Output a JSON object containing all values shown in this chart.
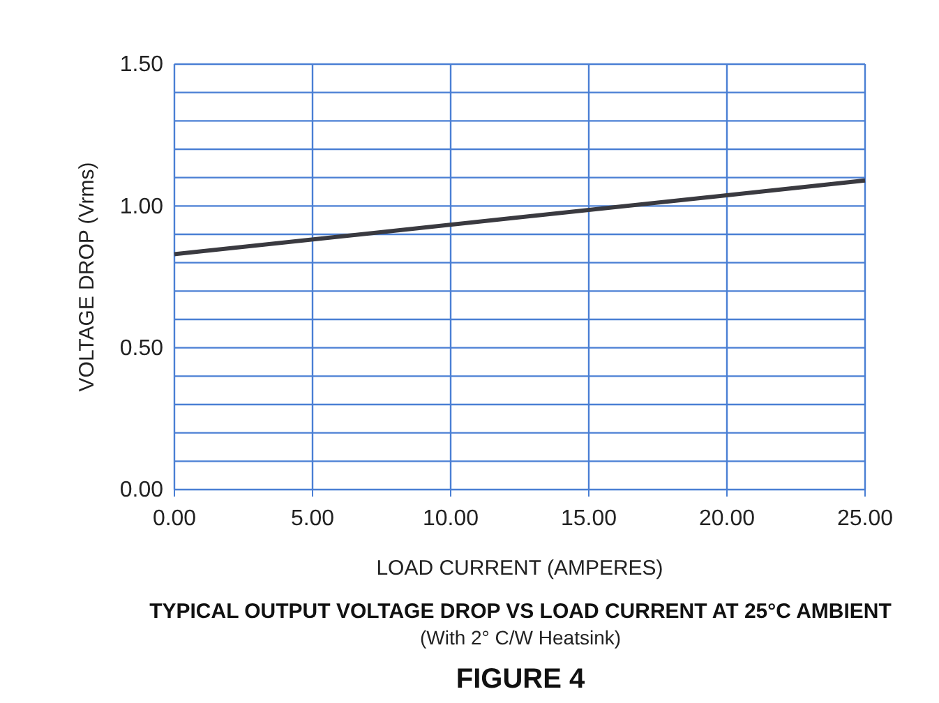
{
  "chart_data": {
    "type": "line",
    "title": "TYPICAL OUTPUT VOLTAGE DROP VS LOAD CURRENT AT 25°C AMBIENT",
    "subtitle": "(With 2° C/W Heatsink)",
    "annotations": [
      "FIGURE 4"
    ],
    "xlabel": "LOAD CURRENT (AMPERES)",
    "ylabel": "VOLTAGE  DROP (Vrms)",
    "x": [
      0,
      25
    ],
    "series": [
      {
        "color": "#3a3a40",
        "values": [
          0.83,
          1.09
        ]
      }
    ],
    "xlim": [
      0,
      25
    ],
    "ylim": [
      0,
      1.5
    ],
    "xticks": [
      {
        "value": 0,
        "label": "0.00"
      },
      {
        "value": 5,
        "label": "5.00"
      },
      {
        "value": 10,
        "label": "10.00"
      },
      {
        "value": 15,
        "label": "15.00"
      },
      {
        "value": 20,
        "label": "20.00"
      },
      {
        "value": 25,
        "label": "25.00"
      }
    ],
    "yticks": [
      {
        "value": 0,
        "label": "0.00"
      },
      {
        "value": 0.1,
        "label": null
      },
      {
        "value": 0.2,
        "label": null
      },
      {
        "value": 0.3,
        "label": null
      },
      {
        "value": 0.4,
        "label": null
      },
      {
        "value": 0.5,
        "label": "0.50"
      },
      {
        "value": 0.6,
        "label": null
      },
      {
        "value": 0.7,
        "label": null
      },
      {
        "value": 0.8,
        "label": null
      },
      {
        "value": 0.9,
        "label": null
      },
      {
        "value": 1,
        "label": "1.00"
      },
      {
        "value": 1.1,
        "label": null
      },
      {
        "value": 1.2,
        "label": null
      },
      {
        "value": 1.3,
        "label": null
      },
      {
        "value": 1.4,
        "label": null
      },
      {
        "value": 1.5,
        "label": "1.50"
      }
    ],
    "grid": true,
    "marker": "none",
    "line_style": "solid"
  }
}
